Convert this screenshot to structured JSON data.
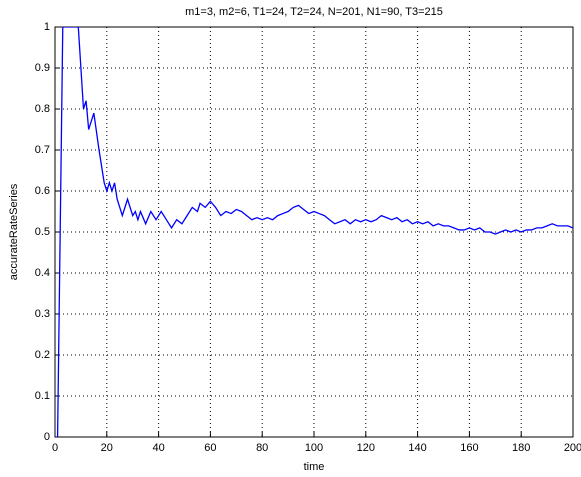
{
  "chart_data": {
    "type": "line",
    "title": "m1=3, m2=6, T1=24, T2=24, N=201, N1=90, T3=215",
    "xlabel": "time",
    "ylabel": "accurateRateSeries",
    "series": [
      {
        "name": "accurateRateSeries",
        "color": "#0000ff",
        "x": [
          1,
          2,
          3,
          9,
          10,
          11,
          12,
          13,
          15,
          17,
          19,
          20,
          21,
          22,
          23,
          24,
          26,
          28,
          30,
          31,
          32,
          33,
          35,
          37,
          39,
          41,
          43,
          45,
          47,
          49,
          51,
          53,
          55,
          56,
          58,
          60,
          62,
          64,
          66,
          68,
          70,
          72,
          74,
          76,
          78,
          80,
          82,
          84,
          86,
          88,
          90,
          92,
          94,
          96,
          98,
          100,
          102,
          104,
          106,
          108,
          110,
          112,
          114,
          116,
          118,
          120,
          122,
          124,
          126,
          128,
          130,
          132,
          134,
          136,
          138,
          140,
          142,
          144,
          146,
          148,
          150,
          152,
          154,
          156,
          158,
          160,
          162,
          164,
          166,
          168,
          170,
          172,
          174,
          176,
          178,
          180,
          182,
          184,
          186,
          188,
          190,
          192,
          194,
          196,
          198,
          200
        ],
        "values": [
          0,
          0.5,
          1,
          1,
          0.9,
          0.8,
          0.82,
          0.75,
          0.79,
          0.7,
          0.62,
          0.6,
          0.62,
          0.6,
          0.62,
          0.58,
          0.54,
          0.58,
          0.54,
          0.55,
          0.53,
          0.55,
          0.52,
          0.55,
          0.53,
          0.55,
          0.53,
          0.51,
          0.53,
          0.52,
          0.54,
          0.56,
          0.55,
          0.57,
          0.56,
          0.575,
          0.56,
          0.54,
          0.55,
          0.545,
          0.555,
          0.55,
          0.54,
          0.53,
          0.535,
          0.53,
          0.535,
          0.53,
          0.54,
          0.545,
          0.55,
          0.56,
          0.565,
          0.555,
          0.545,
          0.55,
          0.545,
          0.54,
          0.53,
          0.52,
          0.525,
          0.53,
          0.52,
          0.53,
          0.525,
          0.53,
          0.525,
          0.53,
          0.54,
          0.535,
          0.53,
          0.535,
          0.525,
          0.53,
          0.52,
          0.525,
          0.52,
          0.525,
          0.515,
          0.52,
          0.515,
          0.515,
          0.51,
          0.505,
          0.505,
          0.51,
          0.505,
          0.51,
          0.5,
          0.5,
          0.495,
          0.5,
          0.505,
          0.5,
          0.505,
          0.5,
          0.505,
          0.505,
          0.51,
          0.51,
          0.515,
          0.52,
          0.515,
          0.515,
          0.515,
          0.51
        ]
      }
    ],
    "xlim": [
      0,
      200
    ],
    "xticks": [
      0,
      20,
      40,
      60,
      80,
      100,
      120,
      140,
      160,
      180,
      200
    ],
    "ylim": [
      0,
      1
    ],
    "yticks": [
      0,
      0.1,
      0.2,
      0.3,
      0.4,
      0.5,
      0.6,
      0.7,
      0.8,
      0.9,
      1
    ],
    "grid": true
  }
}
